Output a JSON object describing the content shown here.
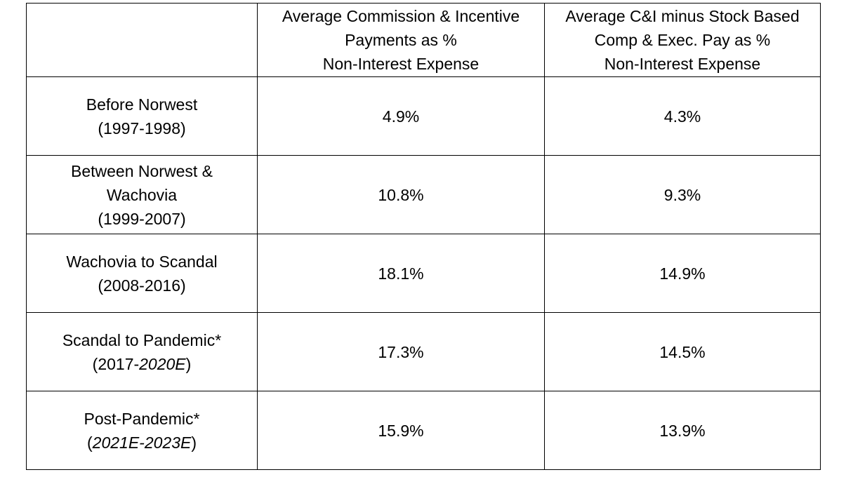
{
  "header": {
    "corner": "",
    "col1": [
      "Average Commission & Incentive",
      "Payments as %",
      "Non-Interest Expense"
    ],
    "col2": [
      "Average C&I minus Stock Based",
      "Comp & Exec. Pay as %",
      "Non-Interest Expense"
    ]
  },
  "rows": [
    {
      "label_lines": [
        "Before Norwest"
      ],
      "period": {
        "open": "(1997-1998)",
        "italic": "",
        "close": ""
      },
      "commission_pct": "4.9%",
      "adjusted_pct": "4.3%"
    },
    {
      "label_lines": [
        "Between Norwest &",
        "Wachovia"
      ],
      "period": {
        "open": "(1999-2007)",
        "italic": "",
        "close": ""
      },
      "commission_pct": "10.8%",
      "adjusted_pct": "9.3%"
    },
    {
      "label_lines": [
        "Wachovia to Scandal"
      ],
      "period": {
        "open": "(2008-2016)",
        "italic": "",
        "close": ""
      },
      "commission_pct": "18.1%",
      "adjusted_pct": "14.9%"
    },
    {
      "label_lines": [
        "Scandal to Pandemic*"
      ],
      "period": {
        "open": "(2017-",
        "italic": "2020E",
        "close": ")"
      },
      "commission_pct": "17.3%",
      "adjusted_pct": "14.5%"
    },
    {
      "label_lines": [
        "Post-Pandemic*"
      ],
      "period": {
        "open": "(",
        "italic": "2021E-2023E",
        "close": ")"
      },
      "commission_pct": "15.9%",
      "adjusted_pct": "13.9%"
    }
  ]
}
